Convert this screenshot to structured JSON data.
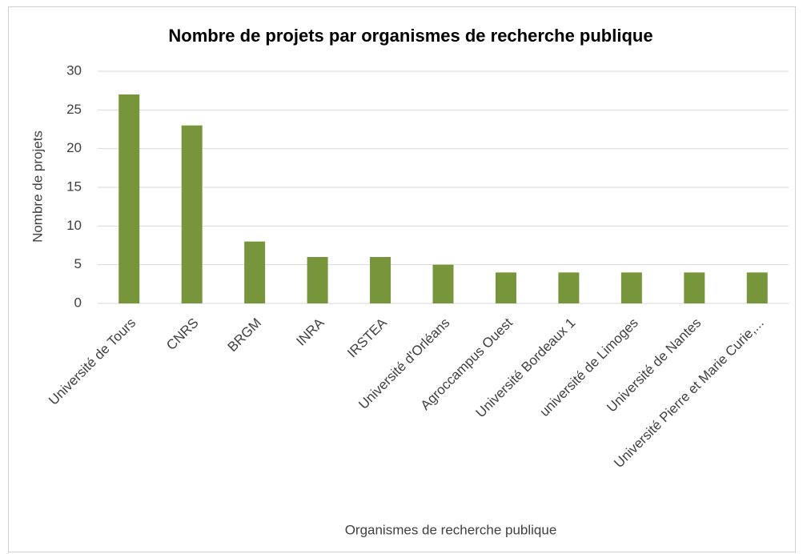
{
  "chart_data": {
    "type": "bar",
    "title": "Nombre de projets par organismes de recherche publique",
    "x_label": "Organismes de recherche publique",
    "y_label": "Nombre de projets",
    "categories": [
      "Université de Tours",
      "CNRS",
      "BRGM",
      "INRA",
      "IRSTEA",
      "Université d'Orléans",
      "Agroccampus Ouest",
      "Université Bordeaux 1",
      "université de Limoges",
      "Université de Nantes",
      "Université Pierre et Marie Curie,..."
    ],
    "values": [
      27,
      23,
      8,
      6,
      6,
      5,
      4,
      4,
      4,
      4,
      4
    ],
    "color": "#77963b",
    "ylim": [
      0,
      30
    ],
    "yticks": [
      0,
      5,
      10,
      15,
      20,
      25,
      30
    ],
    "grid": true
  }
}
